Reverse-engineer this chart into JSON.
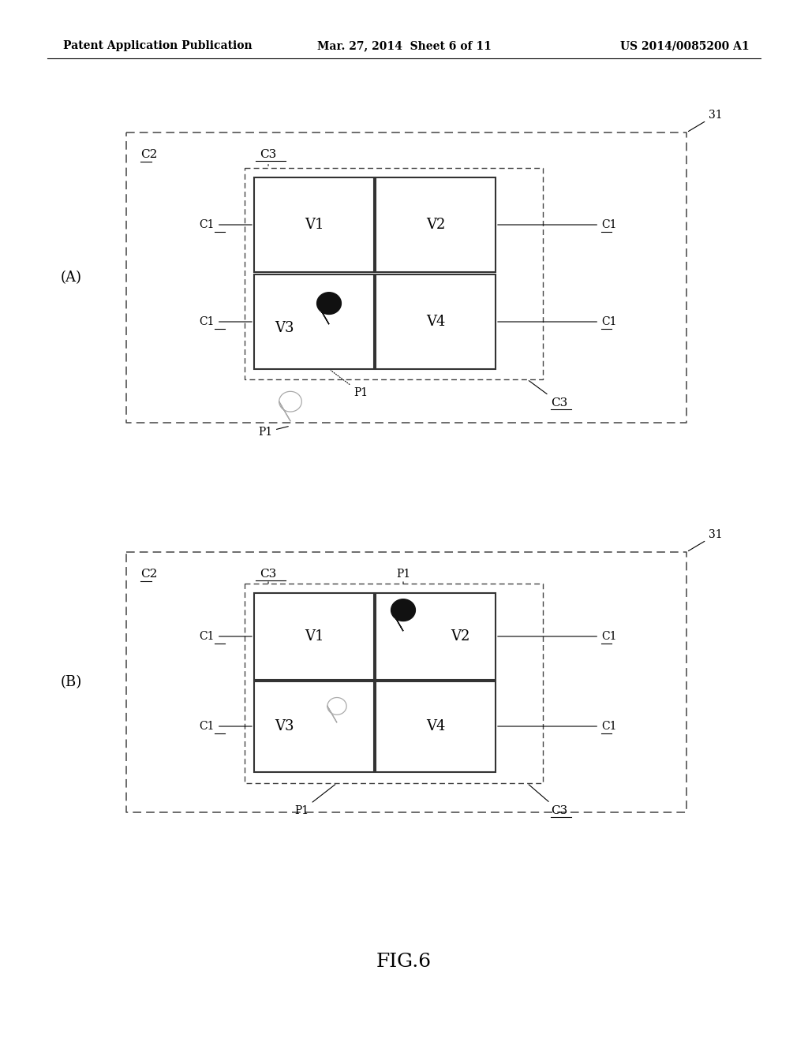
{
  "bg_color": "#ffffff",
  "header_left": "Patent Application Publication",
  "header_mid": "Mar. 27, 2014  Sheet 6 of 11",
  "header_right": "US 2014/0085200 A1",
  "fig_label": "FIG.6",
  "panel_A_label": "(A)",
  "panel_B_label": "(B)"
}
